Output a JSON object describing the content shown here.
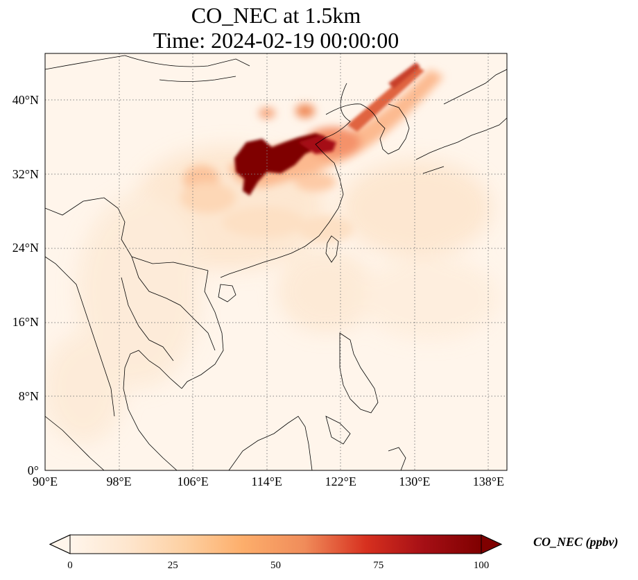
{
  "title_lines": [
    "CO_NEC at 1.5km",
    "Time: 2024-02-19 00:00:00"
  ],
  "map": {
    "projection": "PlateCarree",
    "lon_range": [
      90,
      140
    ],
    "lat_range": [
      0,
      45
    ],
    "gridlines": "dotted grey",
    "field": "CO_NEC",
    "max_concentration_region": "central-eastern China (approx. 110°E–118°E, 30°N–35°N)",
    "colormap": "OrRd"
  },
  "lat_ticks": [
    {
      "value": 0,
      "label": "0°"
    },
    {
      "value": 8,
      "label": "8°N"
    },
    {
      "value": 16,
      "label": "16°N"
    },
    {
      "value": 24,
      "label": "24°N"
    },
    {
      "value": 32,
      "label": "32°N"
    },
    {
      "value": 40,
      "label": "40°N"
    }
  ],
  "lon_ticks": [
    {
      "value": 90,
      "label": "90°E"
    },
    {
      "value": 98,
      "label": "98°E"
    },
    {
      "value": 106,
      "label": "106°E"
    },
    {
      "value": 114,
      "label": "114°E"
    },
    {
      "value": 122,
      "label": "122°E"
    },
    {
      "value": 130,
      "label": "130°E"
    },
    {
      "value": 138,
      "label": "138°E"
    }
  ],
  "colorbar": {
    "label": "CO_NEC (ppbv)",
    "min": 0,
    "max": 100,
    "extend": "both",
    "ticks": [
      {
        "value": 0,
        "label": "0"
      },
      {
        "value": 25,
        "label": "25"
      },
      {
        "value": 50,
        "label": "50"
      },
      {
        "value": 75,
        "label": "75"
      },
      {
        "value": 100,
        "label": "100"
      }
    ],
    "colors": [
      "#fff5eb",
      "#fee6ce",
      "#fdd0a2",
      "#fdae6b",
      "#f08c5a",
      "#d7301f",
      "#a50f15",
      "#7f0000"
    ]
  }
}
